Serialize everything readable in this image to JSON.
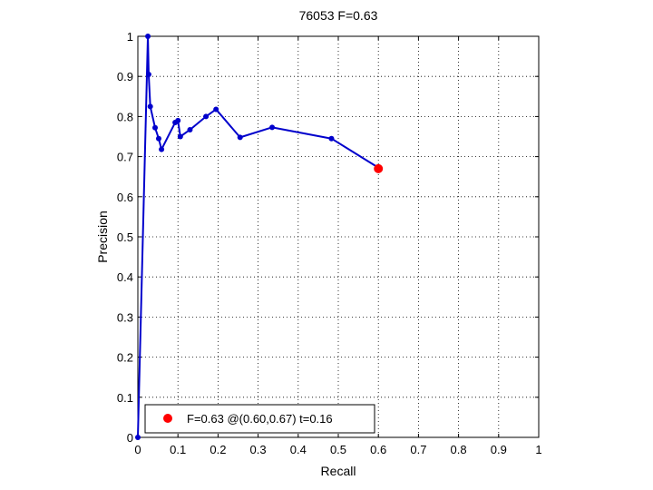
{
  "chart_data": {
    "type": "line",
    "title": "76053 F=0.63",
    "xlabel": "Recall",
    "ylabel": "Precision",
    "xlim": [
      0,
      1
    ],
    "ylim": [
      0,
      1
    ],
    "xticks": [
      "0",
      "0.1",
      "0.2",
      "0.3",
      "0.4",
      "0.5",
      "0.6",
      "0.7",
      "0.8",
      "0.9",
      "1"
    ],
    "yticks": [
      "0",
      "0.1",
      "0.2",
      "0.3",
      "0.4",
      "0.5",
      "0.6",
      "0.7",
      "0.8",
      "0.9",
      "1"
    ],
    "grid": true,
    "legend_position": "bottom-left",
    "series": [
      {
        "color": "#0000cc",
        "x": [
          0.0,
          0.025,
          0.027,
          0.031,
          0.043,
          0.052,
          0.059,
          0.093,
          0.1,
          0.106,
          0.13,
          0.17,
          0.195,
          0.255,
          0.335,
          0.483,
          0.599
        ],
        "y": [
          0.0,
          1.0,
          0.905,
          0.825,
          0.772,
          0.745,
          0.718,
          0.785,
          0.79,
          0.75,
          0.767,
          0.8,
          0.818,
          0.748,
          0.773,
          0.745,
          0.673
        ]
      }
    ],
    "best_point": {
      "x": 0.6,
      "y": 0.67,
      "color": "#ff0000",
      "label": "F=0.63 @(0.60,0.67) t=0.16"
    }
  }
}
